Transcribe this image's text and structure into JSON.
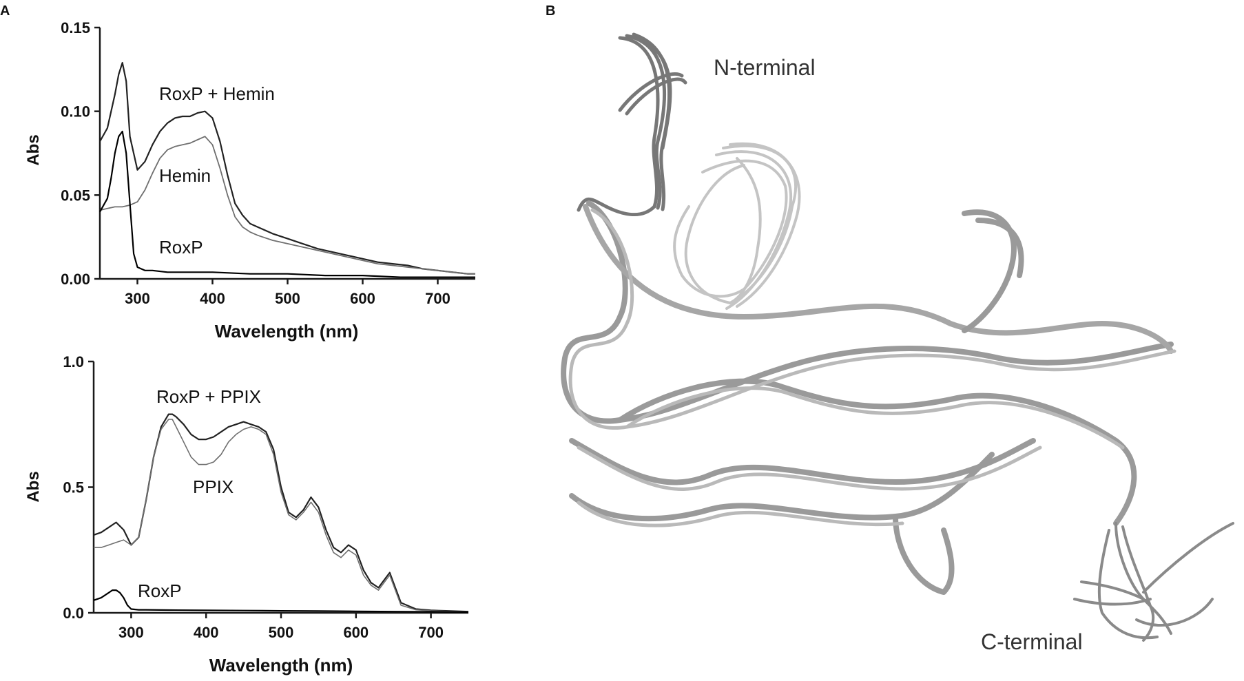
{
  "panels": {
    "a": "A",
    "b": "B"
  },
  "colors": {
    "axis": "#1a1a1a",
    "dark": "#222222",
    "light": "#6f6f6f"
  },
  "chart_data": [
    {
      "type": "line",
      "panel": "A",
      "xlabel": "Wavelength (nm)",
      "ylabel": "Abs",
      "xlim": [
        250,
        750
      ],
      "ylim": [
        0,
        0.15
      ],
      "xticks": [
        300,
        400,
        500,
        600,
        700
      ],
      "yticks": [
        0.0,
        0.05,
        0.1,
        0.15
      ],
      "ytick_labels": [
        "0.00",
        "0.05",
        "0.10",
        "0.15"
      ],
      "series": [
        {
          "name": "RoxP + Hemin",
          "x": [
            250,
            260,
            270,
            275,
            280,
            285,
            290,
            300,
            310,
            320,
            330,
            340,
            350,
            360,
            370,
            380,
            390,
            400,
            410,
            420,
            430,
            440,
            450,
            460,
            480,
            500,
            520,
            540,
            560,
            580,
            600,
            620,
            640,
            660,
            680,
            700,
            720,
            740,
            750
          ],
          "y": [
            0.082,
            0.09,
            0.11,
            0.122,
            0.129,
            0.118,
            0.085,
            0.065,
            0.07,
            0.08,
            0.088,
            0.093,
            0.096,
            0.097,
            0.097,
            0.099,
            0.1,
            0.096,
            0.082,
            0.062,
            0.045,
            0.038,
            0.033,
            0.031,
            0.027,
            0.024,
            0.021,
            0.018,
            0.016,
            0.014,
            0.012,
            0.01,
            0.009,
            0.008,
            0.006,
            0.005,
            0.004,
            0.003,
            0.003
          ]
        },
        {
          "name": "Hemin",
          "x": [
            250,
            260,
            270,
            280,
            290,
            300,
            310,
            320,
            330,
            340,
            350,
            360,
            370,
            380,
            390,
            400,
            410,
            420,
            430,
            440,
            450,
            460,
            480,
            500,
            520,
            540,
            560,
            580,
            600,
            620,
            640,
            660,
            680,
            700,
            720,
            740,
            750
          ],
          "y": [
            0.041,
            0.042,
            0.043,
            0.043,
            0.044,
            0.046,
            0.053,
            0.063,
            0.072,
            0.077,
            0.079,
            0.08,
            0.081,
            0.083,
            0.085,
            0.08,
            0.066,
            0.05,
            0.037,
            0.031,
            0.028,
            0.026,
            0.023,
            0.021,
            0.019,
            0.017,
            0.015,
            0.013,
            0.011,
            0.009,
            0.008,
            0.007,
            0.006,
            0.005,
            0.004,
            0.003,
            0.003
          ]
        },
        {
          "name": "RoxP",
          "x": [
            250,
            260,
            265,
            270,
            275,
            280,
            285,
            290,
            295,
            300,
            310,
            320,
            340,
            360,
            400,
            450,
            500,
            550,
            600,
            650,
            700,
            750
          ],
          "y": [
            0.04,
            0.048,
            0.06,
            0.075,
            0.085,
            0.088,
            0.075,
            0.045,
            0.015,
            0.007,
            0.005,
            0.005,
            0.004,
            0.004,
            0.004,
            0.003,
            0.003,
            0.002,
            0.002,
            0.001,
            0.001,
            0.001
          ]
        }
      ]
    },
    {
      "type": "line",
      "panel": "A",
      "xlabel": "Wavelength (nm)",
      "ylabel": "Abs",
      "xlim": [
        250,
        750
      ],
      "ylim": [
        0,
        1.0
      ],
      "xticks": [
        300,
        400,
        500,
        600,
        700
      ],
      "yticks": [
        0.0,
        0.5,
        1.0
      ],
      "ytick_labels": [
        "0.0",
        "0.5",
        "1.0"
      ],
      "series": [
        {
          "name": "RoxP + PPIX",
          "x": [
            250,
            260,
            270,
            280,
            290,
            300,
            310,
            320,
            330,
            340,
            350,
            355,
            360,
            370,
            380,
            390,
            400,
            410,
            420,
            430,
            440,
            450,
            460,
            470,
            480,
            490,
            500,
            510,
            520,
            530,
            540,
            550,
            560,
            570,
            580,
            590,
            600,
            610,
            620,
            630,
            640,
            645,
            650,
            660,
            680,
            700,
            720,
            750
          ],
          "y": [
            0.31,
            0.32,
            0.34,
            0.36,
            0.33,
            0.27,
            0.3,
            0.45,
            0.62,
            0.74,
            0.79,
            0.79,
            0.78,
            0.75,
            0.71,
            0.69,
            0.69,
            0.7,
            0.72,
            0.74,
            0.75,
            0.76,
            0.75,
            0.74,
            0.72,
            0.65,
            0.5,
            0.4,
            0.38,
            0.41,
            0.46,
            0.42,
            0.33,
            0.26,
            0.24,
            0.27,
            0.25,
            0.17,
            0.12,
            0.1,
            0.14,
            0.16,
            0.12,
            0.04,
            0.015,
            0.01,
            0.008,
            0.005
          ]
        },
        {
          "name": "PPIX",
          "x": [
            250,
            260,
            270,
            280,
            290,
            300,
            310,
            320,
            330,
            340,
            350,
            355,
            360,
            370,
            380,
            390,
            400,
            410,
            420,
            430,
            440,
            450,
            460,
            470,
            480,
            490,
            500,
            510,
            520,
            530,
            540,
            550,
            560,
            570,
            580,
            590,
            600,
            610,
            620,
            630,
            640,
            645,
            650,
            660,
            680,
            700,
            720,
            750
          ],
          "y": [
            0.26,
            0.26,
            0.27,
            0.28,
            0.29,
            0.27,
            0.3,
            0.45,
            0.62,
            0.73,
            0.77,
            0.77,
            0.74,
            0.68,
            0.62,
            0.59,
            0.59,
            0.6,
            0.63,
            0.68,
            0.71,
            0.73,
            0.74,
            0.73,
            0.71,
            0.63,
            0.48,
            0.39,
            0.37,
            0.4,
            0.44,
            0.4,
            0.31,
            0.24,
            0.22,
            0.25,
            0.23,
            0.15,
            0.11,
            0.09,
            0.13,
            0.15,
            0.11,
            0.03,
            0.012,
            0.008,
            0.006,
            0.004
          ]
        },
        {
          "name": "RoxP",
          "x": [
            250,
            260,
            270,
            275,
            280,
            285,
            290,
            295,
            300,
            310,
            320,
            350,
            400,
            450,
            500,
            550,
            600,
            650,
            700,
            750
          ],
          "y": [
            0.05,
            0.06,
            0.08,
            0.09,
            0.09,
            0.08,
            0.06,
            0.03,
            0.015,
            0.012,
            0.012,
            0.011,
            0.01,
            0.009,
            0.008,
            0.007,
            0.006,
            0.005,
            0.004,
            0.003
          ]
        }
      ]
    }
  ],
  "structure": {
    "n_label": "N-terminal",
    "c_label": "C-terminal"
  }
}
